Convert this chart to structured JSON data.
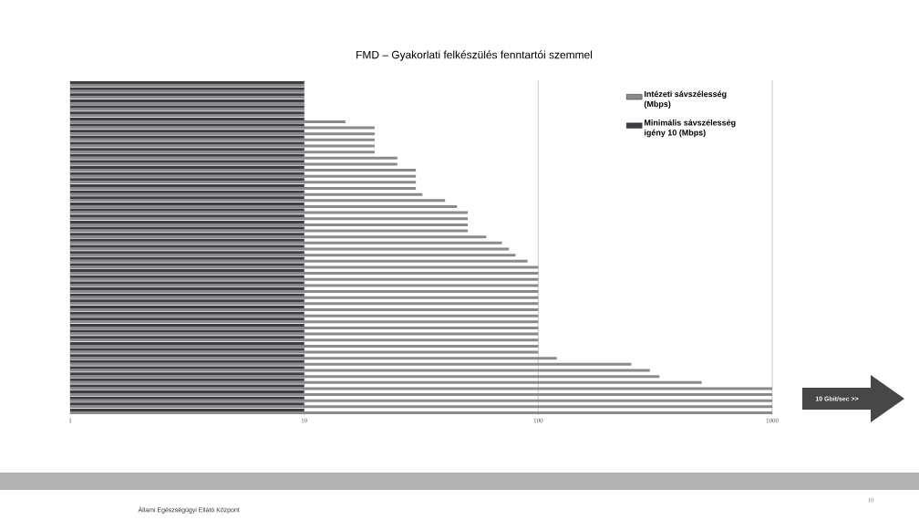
{
  "chart_data": {
    "type": "bar",
    "orientation": "horizontal",
    "title": "FMD – Gyakorlati felkészülés fenntartói szemmel",
    "categories": [
      null,
      null,
      null,
      null,
      null,
      null,
      null,
      null,
      null,
      null,
      null,
      null,
      null,
      null,
      null,
      null,
      null,
      null,
      null,
      null,
      null,
      null,
      null,
      null,
      null,
      null,
      null,
      null,
      null,
      null,
      null,
      null,
      null,
      null,
      null,
      null,
      null,
      null,
      null,
      null,
      null,
      null,
      null,
      null,
      null,
      null,
      null,
      null,
      null,
      null,
      null,
      null,
      null,
      null,
      null
    ],
    "series": [
      {
        "name": "Intézeti sávszélesség (Mbps)",
        "color": "#8a8a8a",
        "values": [
          10,
          10,
          10,
          10,
          10,
          10,
          15,
          20,
          20,
          20,
          20,
          20,
          25,
          25,
          30,
          30,
          30,
          30,
          32,
          40,
          45,
          50,
          50,
          50,
          50,
          60,
          70,
          75,
          80,
          90,
          100,
          100,
          100,
          100,
          100,
          100,
          100,
          100,
          100,
          100,
          100,
          100,
          100,
          100,
          100,
          120,
          250,
          300,
          330,
          500,
          1000,
          1000,
          1000,
          1000,
          1000
        ]
      },
      {
        "name": "Minimális sávszélesség igény 10 (Mbps)",
        "color": "#3c3c44",
        "values": [
          10,
          10,
          10,
          10,
          10,
          10,
          10,
          10,
          10,
          10,
          10,
          10,
          10,
          10,
          10,
          10,
          10,
          10,
          10,
          10,
          10,
          10,
          10,
          10,
          10,
          10,
          10,
          10,
          10,
          10,
          10,
          10,
          10,
          10,
          10,
          10,
          10,
          10,
          10,
          10,
          10,
          10,
          10,
          10,
          10,
          10,
          10,
          10,
          10,
          10,
          10,
          10,
          10,
          10,
          10
        ]
      }
    ],
    "log": "x",
    "xlim": [
      1,
      1000
    ],
    "xticks": [
      1,
      10,
      100,
      1000
    ],
    "grid": "x",
    "legend": "top right",
    "annotations": [
      "10 Gbit/sec >>",
      "Állami Egészségügyi Ellátó Központ",
      "10"
    ]
  }
}
